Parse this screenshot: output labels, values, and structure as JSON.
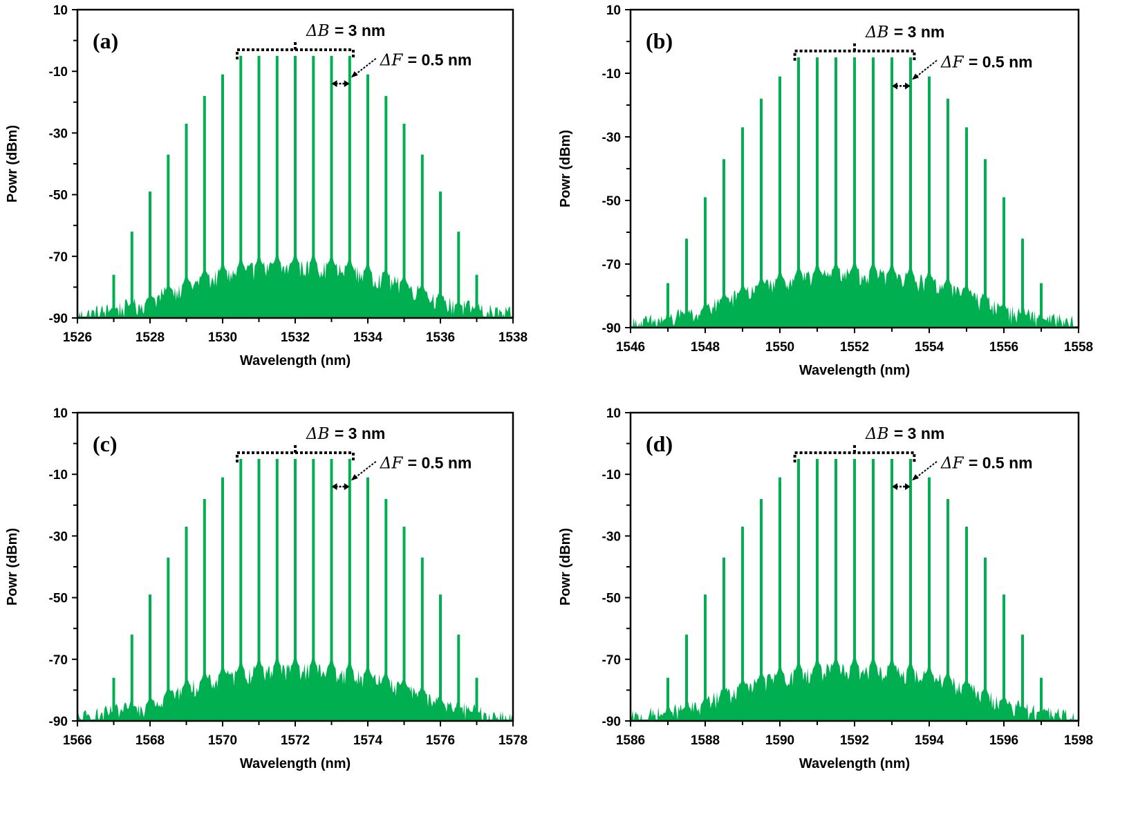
{
  "colors": {
    "series": "#00b050",
    "axes": "#000000",
    "background": "#ffffff"
  },
  "chart_data": [
    {
      "type": "line",
      "panel_label": "(a)",
      "xlabel": "Wavelength (nm)",
      "ylabel": "Powr (dBm)",
      "xlim": [
        1526,
        1538
      ],
      "ylim": [
        -90,
        10
      ],
      "xticks": [
        "1526",
        "1528",
        "1530",
        "1532",
        "1534",
        "1536",
        "1538"
      ],
      "yticks": [
        "10",
        "-10",
        "-30",
        "-50",
        "-70",
        "-90"
      ],
      "grid": false,
      "center_nm": 1532.0,
      "spacing_nm": 0.5,
      "lines": [
        {
          "x": 1527.0,
          "y": -76
        },
        {
          "x": 1527.5,
          "y": -62
        },
        {
          "x": 1528.0,
          "y": -49
        },
        {
          "x": 1528.5,
          "y": -37
        },
        {
          "x": 1529.0,
          "y": -27
        },
        {
          "x": 1529.5,
          "y": -18
        },
        {
          "x": 1530.0,
          "y": -11
        },
        {
          "x": 1530.5,
          "y": -5
        },
        {
          "x": 1531.0,
          "y": -5
        },
        {
          "x": 1531.5,
          "y": -5
        },
        {
          "x": 1532.0,
          "y": -5
        },
        {
          "x": 1532.5,
          "y": -5
        },
        {
          "x": 1533.0,
          "y": -5
        },
        {
          "x": 1533.5,
          "y": -5
        },
        {
          "x": 1534.0,
          "y": -11
        },
        {
          "x": 1534.5,
          "y": -18
        },
        {
          "x": 1535.0,
          "y": -27
        },
        {
          "x": 1535.5,
          "y": -37
        },
        {
          "x": 1536.0,
          "y": -49
        },
        {
          "x": 1536.5,
          "y": -62
        },
        {
          "x": 1537.0,
          "y": -76
        }
      ],
      "annotations": {
        "bandwidth": {
          "symbol": "ΔB",
          "text": "= 3 nm",
          "x_from": 1530.4,
          "x_to": 1533.6,
          "y": -3
        },
        "spacing": {
          "symbol": "ΔF",
          "text": "= 0.5 nm",
          "x_from": 1533.0,
          "x_to": 1533.5,
          "y": -14
        }
      }
    },
    {
      "type": "line",
      "panel_label": "(b)",
      "xlabel": "Wavelength (nm)",
      "ylabel": "Powr (dBm)",
      "xlim": [
        1546,
        1558
      ],
      "ylim": [
        -90,
        10
      ],
      "xticks": [
        "1546",
        "1548",
        "1550",
        "1552",
        "1554",
        "1556",
        "1558"
      ],
      "yticks": [
        "10",
        "-10",
        "-30",
        "-50",
        "-70",
        "-90"
      ],
      "grid": false,
      "center_nm": 1552.0,
      "spacing_nm": 0.5,
      "lines": [
        {
          "x": 1547.0,
          "y": -76
        },
        {
          "x": 1547.5,
          "y": -62
        },
        {
          "x": 1548.0,
          "y": -49
        },
        {
          "x": 1548.5,
          "y": -37
        },
        {
          "x": 1549.0,
          "y": -27
        },
        {
          "x": 1549.5,
          "y": -18
        },
        {
          "x": 1550.0,
          "y": -11
        },
        {
          "x": 1550.5,
          "y": -5
        },
        {
          "x": 1551.0,
          "y": -5
        },
        {
          "x": 1551.5,
          "y": -5
        },
        {
          "x": 1552.0,
          "y": -5
        },
        {
          "x": 1552.5,
          "y": -5
        },
        {
          "x": 1553.0,
          "y": -5
        },
        {
          "x": 1553.5,
          "y": -5
        },
        {
          "x": 1554.0,
          "y": -11
        },
        {
          "x": 1554.5,
          "y": -18
        },
        {
          "x": 1555.0,
          "y": -27
        },
        {
          "x": 1555.5,
          "y": -37
        },
        {
          "x": 1556.0,
          "y": -49
        },
        {
          "x": 1556.5,
          "y": -62
        },
        {
          "x": 1557.0,
          "y": -76
        }
      ],
      "annotations": {
        "bandwidth": {
          "symbol": "ΔB",
          "text": "= 3 nm",
          "x_from": 1550.4,
          "x_to": 1553.6,
          "y": -3
        },
        "spacing": {
          "symbol": "ΔF",
          "text": "= 0.5 nm",
          "x_from": 1553.0,
          "x_to": 1553.5,
          "y": -14
        }
      }
    },
    {
      "type": "line",
      "panel_label": "(c)",
      "xlabel": "Wavelength (nm)",
      "ylabel": "Powr (dBm)",
      "xlim": [
        1566,
        1578
      ],
      "ylim": [
        -90,
        10
      ],
      "xticks": [
        "1566",
        "1568",
        "1570",
        "1572",
        "1574",
        "1576",
        "1578"
      ],
      "yticks": [
        "10",
        "-10",
        "-30",
        "-50",
        "-70",
        "-90"
      ],
      "grid": false,
      "center_nm": 1572.0,
      "spacing_nm": 0.5,
      "lines": [
        {
          "x": 1567.0,
          "y": -76
        },
        {
          "x": 1567.5,
          "y": -62
        },
        {
          "x": 1568.0,
          "y": -49
        },
        {
          "x": 1568.5,
          "y": -37
        },
        {
          "x": 1569.0,
          "y": -27
        },
        {
          "x": 1569.5,
          "y": -18
        },
        {
          "x": 1570.0,
          "y": -11
        },
        {
          "x": 1570.5,
          "y": -5
        },
        {
          "x": 1571.0,
          "y": -5
        },
        {
          "x": 1571.5,
          "y": -5
        },
        {
          "x": 1572.0,
          "y": -5
        },
        {
          "x": 1572.5,
          "y": -5
        },
        {
          "x": 1573.0,
          "y": -5
        },
        {
          "x": 1573.5,
          "y": -5
        },
        {
          "x": 1574.0,
          "y": -11
        },
        {
          "x": 1574.5,
          "y": -18
        },
        {
          "x": 1575.0,
          "y": -27
        },
        {
          "x": 1575.5,
          "y": -37
        },
        {
          "x": 1576.0,
          "y": -49
        },
        {
          "x": 1576.5,
          "y": -62
        },
        {
          "x": 1577.0,
          "y": -76
        }
      ],
      "annotations": {
        "bandwidth": {
          "symbol": "ΔB",
          "text": "= 3 nm",
          "x_from": 1570.4,
          "x_to": 1573.6,
          "y": -3
        },
        "spacing": {
          "symbol": "ΔF",
          "text": "= 0.5 nm",
          "x_from": 1573.0,
          "x_to": 1573.5,
          "y": -14
        }
      }
    },
    {
      "type": "line",
      "panel_label": "(d)",
      "xlabel": "Wavelength (nm)",
      "ylabel": "Powr (dBm)",
      "xlim": [
        1586,
        1598
      ],
      "ylim": [
        -90,
        10
      ],
      "xticks": [
        "1586",
        "1588",
        "1590",
        "1592",
        "1594",
        "1596",
        "1598"
      ],
      "yticks": [
        "10",
        "-10",
        "-30",
        "-50",
        "-70",
        "-90"
      ],
      "grid": false,
      "center_nm": 1592.0,
      "spacing_nm": 0.5,
      "lines": [
        {
          "x": 1587.0,
          "y": -76
        },
        {
          "x": 1587.5,
          "y": -62
        },
        {
          "x": 1588.0,
          "y": -49
        },
        {
          "x": 1588.5,
          "y": -37
        },
        {
          "x": 1589.0,
          "y": -27
        },
        {
          "x": 1589.5,
          "y": -18
        },
        {
          "x": 1590.0,
          "y": -11
        },
        {
          "x": 1590.5,
          "y": -5
        },
        {
          "x": 1591.0,
          "y": -5
        },
        {
          "x": 1591.5,
          "y": -5
        },
        {
          "x": 1592.0,
          "y": -5
        },
        {
          "x": 1592.5,
          "y": -5
        },
        {
          "x": 1593.0,
          "y": -5
        },
        {
          "x": 1593.5,
          "y": -5
        },
        {
          "x": 1594.0,
          "y": -11
        },
        {
          "x": 1594.5,
          "y": -18
        },
        {
          "x": 1595.0,
          "y": -27
        },
        {
          "x": 1595.5,
          "y": -37
        },
        {
          "x": 1596.0,
          "y": -49
        },
        {
          "x": 1596.5,
          "y": -62
        },
        {
          "x": 1597.0,
          "y": -76
        }
      ],
      "annotations": {
        "bandwidth": {
          "symbol": "ΔB",
          "text": "= 3 nm",
          "x_from": 1590.4,
          "x_to": 1593.6,
          "y": -3
        },
        "spacing": {
          "symbol": "ΔF",
          "text": "= 0.5 nm",
          "x_from": 1593.0,
          "x_to": 1593.5,
          "y": -14
        }
      }
    }
  ]
}
